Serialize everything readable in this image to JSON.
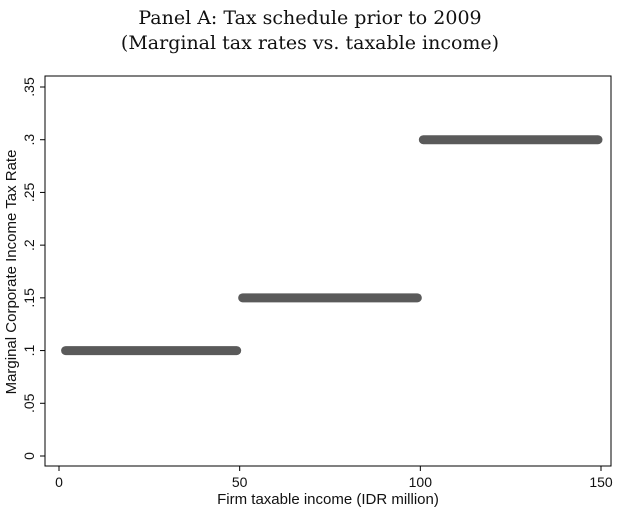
{
  "chart_data": {
    "type": "line",
    "title": "Panel A: Tax schedule prior to 2009",
    "subtitle": "(Marginal tax rates vs. taxable income)",
    "xlabel": "Firm taxable income (IDR million)",
    "ylabel": "Marginal Corporate Income Tax Rate",
    "xlim": [
      0,
      150
    ],
    "ylim": [
      0,
      0.35
    ],
    "x_ticks": [
      {
        "value": 0,
        "label": "0"
      },
      {
        "value": 50,
        "label": "50"
      },
      {
        "value": 100,
        "label": "100"
      },
      {
        "value": 150,
        "label": "150"
      }
    ],
    "y_ticks": [
      {
        "value": 0,
        "label": "0"
      },
      {
        "value": 0.05,
        "label": ".05"
      },
      {
        "value": 0.1,
        "label": ".1"
      },
      {
        "value": 0.15,
        "label": ".15"
      },
      {
        "value": 0.2,
        "label": ".2"
      },
      {
        "value": 0.25,
        "label": ".25"
      },
      {
        "value": 0.3,
        "label": ".3"
      },
      {
        "value": 0.35,
        "label": ".35"
      }
    ],
    "grid": false,
    "series": [
      {
        "color": "#5a5a5a",
        "segments": [
          {
            "x_start": 1,
            "x_end": 50,
            "y": 0.1
          },
          {
            "x_start": 50,
            "x_end": 100,
            "y": 0.15
          },
          {
            "x_start": 100,
            "x_end": 150,
            "y": 0.3
          }
        ]
      }
    ]
  }
}
